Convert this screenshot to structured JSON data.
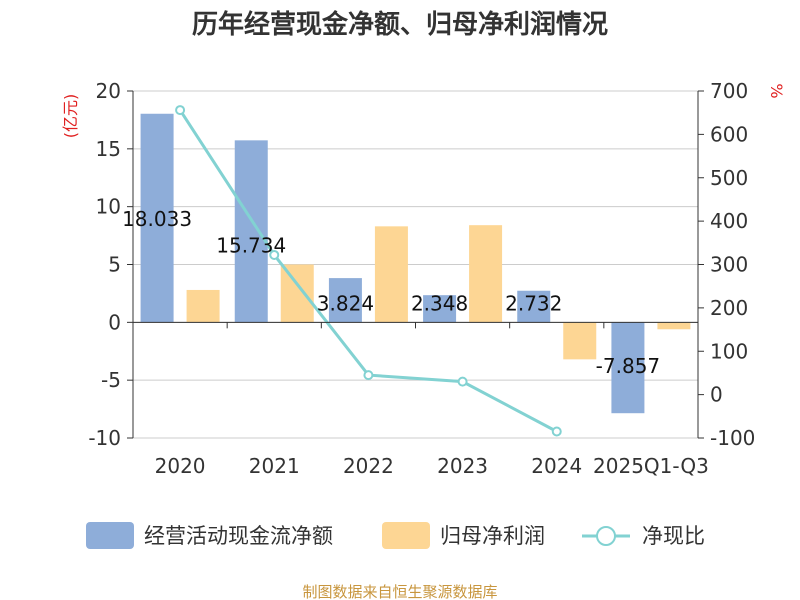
{
  "colors": {
    "cash_flow": "#8eadd9",
    "net_profit": "#fdd694",
    "ratio": "#82d2d2",
    "unit_text": "#e02020",
    "source_text": "#c8963e"
  },
  "chart_data": {
    "type": "bar",
    "title": "历年经营现金净额、归母净利润情况",
    "categories": [
      "2020",
      "2021",
      "2022",
      "2023",
      "2024",
      "2025Q1-Q3"
    ],
    "y_left": {
      "label": "(亿元)",
      "ylim": [
        -10,
        20
      ],
      "ticks": [
        20,
        15,
        10,
        5,
        0,
        -5,
        -10
      ]
    },
    "y_right": {
      "label": "%",
      "ylim": [
        -100,
        700
      ],
      "ticks": [
        700,
        600,
        500,
        400,
        300,
        200,
        100,
        0,
        -100
      ]
    },
    "series": [
      {
        "name": "经营活动现金流净额",
        "type": "bar",
        "axis": "left",
        "values": [
          18.033,
          15.734,
          3.824,
          2.348,
          2.732,
          -7.857
        ],
        "labels": [
          "18.033",
          "15.734",
          "3.824",
          "2.348",
          "2.732",
          "-7.857"
        ]
      },
      {
        "name": "归母净利润",
        "type": "bar",
        "axis": "left",
        "values": [
          2.8,
          5.0,
          8.3,
          8.4,
          -3.2,
          -0.6
        ]
      },
      {
        "name": "净现比",
        "type": "line",
        "axis": "right",
        "values": [
          656,
          322,
          45,
          30,
          -85,
          null
        ]
      }
    ],
    "legend": [
      "经营活动现金流净额",
      "归母净利润",
      "净现比"
    ],
    "source": "制图数据来自恒生聚源数据库"
  }
}
